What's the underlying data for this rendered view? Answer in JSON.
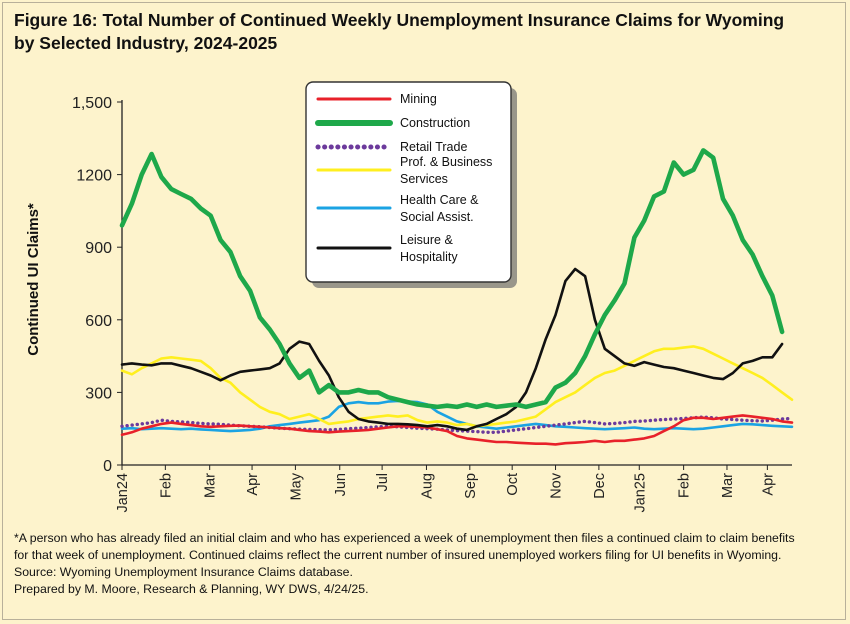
{
  "title_lines": [
    "Figure 16: Total Number of Continued Weekly Unemployment Insurance Claims for Wyoming",
    "by Selected Industry, 2024-2025"
  ],
  "footnote": {
    "lines": [
      "*A person who has already filed an initial claim and who has experienced a week of unemployment then files a continued claim to claim benefits",
      "for that week of unemployment. Continued claims reflect the current number of insured unemployed workers filing for UI benefits in Wyoming.",
      "Source: Wyoming Unemployment Insurance Claims database.",
      "Prepared by M. Moore, Research & Planning, WY DWS, 4/24/25."
    ]
  },
  "chart_data": {
    "type": "line",
    "ylabel": "Continued UI Claims*",
    "ylim": [
      0,
      1500
    ],
    "yticks": [
      {
        "value": 0,
        "label": "0"
      },
      {
        "value": 300,
        "label": "300"
      },
      {
        "value": 600,
        "label": "600"
      },
      {
        "value": 900,
        "label": "900"
      },
      {
        "value": 1200,
        "label": "1200"
      },
      {
        "value": 1500,
        "label": "1,500"
      }
    ],
    "xlim": [
      0,
      68
    ],
    "xticks": [
      {
        "week": 0,
        "label": "Jan24"
      },
      {
        "week": 4.4,
        "label": "Feb"
      },
      {
        "week": 8.9,
        "label": "Mar"
      },
      {
        "week": 13.2,
        "label": "Apr"
      },
      {
        "week": 17.6,
        "label": "May"
      },
      {
        "week": 22.1,
        "label": "Jun"
      },
      {
        "week": 26.4,
        "label": "Jul"
      },
      {
        "week": 30.9,
        "label": "Aug"
      },
      {
        "week": 35.3,
        "label": "Sep"
      },
      {
        "week": 39.6,
        "label": "Oct"
      },
      {
        "week": 44.0,
        "label": "Nov"
      },
      {
        "week": 48.4,
        "label": "Dec"
      },
      {
        "week": 52.5,
        "label": "Jan25"
      },
      {
        "week": 57.0,
        "label": "Feb"
      },
      {
        "week": 61.4,
        "label": "Mar"
      },
      {
        "week": 65.5,
        "label": "Apr"
      }
    ],
    "grid": false,
    "legend_position": "top-center",
    "series": [
      {
        "name": "Mining",
        "color": "#e8212a",
        "dash": "solid",
        "values": [
          125,
          135,
          150,
          160,
          170,
          175,
          170,
          165,
          160,
          158,
          160,
          162,
          163,
          160,
          158,
          155,
          152,
          150,
          145,
          140,
          138,
          135,
          138,
          140,
          142,
          145,
          150,
          155,
          160,
          160,
          158,
          155,
          148,
          140,
          120,
          110,
          105,
          100,
          95,
          95,
          92,
          90,
          88,
          88,
          85,
          90,
          92,
          95,
          100,
          95,
          100,
          100,
          105,
          110,
          120,
          140,
          160,
          185,
          195,
          195,
          190,
          195,
          200,
          205,
          200,
          195,
          190,
          180,
          175
        ]
      },
      {
        "name": "Construction",
        "color": "#1ea84a",
        "dash": "solid",
        "values": [
          990,
          1080,
          1200,
          1285,
          1190,
          1140,
          1120,
          1100,
          1060,
          1030,
          930,
          880,
          780,
          720,
          610,
          560,
          500,
          420,
          360,
          390,
          300,
          330,
          300,
          300,
          310,
          300,
          300,
          280,
          270,
          260,
          250,
          245,
          240,
          245,
          240,
          250,
          240,
          250,
          240,
          245,
          250,
          240,
          250,
          260,
          320,
          340,
          380,
          450,
          540,
          620,
          680,
          750,
          940,
          1010,
          1110,
          1130,
          1250,
          1200,
          1220,
          1300,
          1270,
          1100,
          1030,
          930,
          870,
          780,
          700,
          550
        ]
      },
      {
        "name": "Retail Trade",
        "color": "#6c3a9c",
        "dash": "dotted",
        "values": [
          160,
          165,
          170,
          175,
          185,
          180,
          178,
          175,
          172,
          170,
          168,
          165,
          162,
          160,
          158,
          155,
          152,
          150,
          148,
          147,
          146,
          145,
          147,
          150,
          152,
          155,
          158,
          160,
          158,
          155,
          152,
          150,
          148,
          145,
          142,
          140,
          138,
          135,
          135,
          140,
          145,
          150,
          155,
          160,
          165,
          170,
          175,
          180,
          175,
          170,
          172,
          175,
          180,
          182,
          185,
          188,
          190,
          192,
          195,
          198,
          195,
          190,
          188,
          185,
          183,
          182,
          185,
          190,
          192
        ]
      },
      {
        "name": "Prof. & Business Services",
        "color": "#ffef1f",
        "dash": "solid",
        "values": [
          390,
          375,
          400,
          420,
          440,
          445,
          440,
          435,
          430,
          400,
          360,
          340,
          300,
          270,
          240,
          220,
          210,
          190,
          200,
          210,
          190,
          170,
          175,
          180,
          190,
          195,
          200,
          205,
          200,
          205,
          185,
          175,
          180,
          175,
          165,
          170,
          160,
          165,
          170,
          175,
          180,
          190,
          200,
          230,
          260,
          280,
          300,
          330,
          360,
          380,
          390,
          410,
          430,
          450,
          470,
          480,
          480,
          485,
          490,
          480,
          460,
          440,
          420,
          400,
          380,
          360,
          330,
          300,
          270
        ]
      },
      {
        "name": "Health Care & Social Assist.",
        "color": "#1ba3e3",
        "dash": "solid",
        "values": [
          150,
          152,
          148,
          150,
          152,
          150,
          148,
          150,
          147,
          145,
          142,
          140,
          142,
          145,
          150,
          160,
          165,
          170,
          175,
          180,
          185,
          200,
          240,
          255,
          260,
          255,
          255,
          262,
          265,
          262,
          260,
          250,
          220,
          200,
          180,
          170,
          160,
          155,
          150,
          155,
          160,
          165,
          170,
          165,
          160,
          158,
          155,
          152,
          150,
          148,
          150,
          152,
          155,
          150,
          148,
          150,
          152,
          150,
          148,
          150,
          155,
          160,
          165,
          170,
          168,
          165,
          162,
          160,
          158
        ]
      },
      {
        "name": "Leisure & Hospitality",
        "color": "#111111",
        "dash": "solid",
        "values": [
          415,
          420,
          415,
          412,
          420,
          420,
          410,
          400,
          385,
          370,
          350,
          370,
          385,
          390,
          395,
          400,
          420,
          480,
          510,
          500,
          430,
          370,
          280,
          220,
          190,
          180,
          175,
          170,
          170,
          168,
          165,
          160,
          165,
          160,
          150,
          145,
          160,
          170,
          190,
          210,
          240,
          300,
          400,
          520,
          620,
          760,
          810,
          780,
          600,
          480,
          450,
          420,
          410,
          425,
          415,
          405,
          400,
          390,
          380,
          370,
          360,
          355,
          380,
          420,
          430,
          445,
          445,
          500
        ]
      }
    ],
    "legend_items": [
      {
        "text": "Mining",
        "lines": [
          "Mining"
        ],
        "color": "#e8212a",
        "dash": "solid",
        "width": 3
      },
      {
        "text": "Construction",
        "lines": [
          "Construction"
        ],
        "color": "#1ea84a",
        "dash": "solid",
        "width": 6
      },
      {
        "text": "Retail Trade",
        "lines": [
          "Retail Trade"
        ],
        "color": "#6c3a9c",
        "dash": "dotted",
        "width": 5
      },
      {
        "text": "Prof. & Business Services",
        "lines": [
          "Prof. & Business",
          "Services"
        ],
        "color": "#ffef1f",
        "dash": "solid",
        "width": 3
      },
      {
        "text": "Health Care & Social Assist.",
        "lines": [
          "Health Care &",
          "Social Assist."
        ],
        "color": "#1ba3e3",
        "dash": "solid",
        "width": 3
      },
      {
        "text": "Leisure & Hospitality",
        "lines": [
          "Leisure &",
          "Hospitality"
        ],
        "color": "#111111",
        "dash": "solid",
        "width": 3
      }
    ]
  }
}
